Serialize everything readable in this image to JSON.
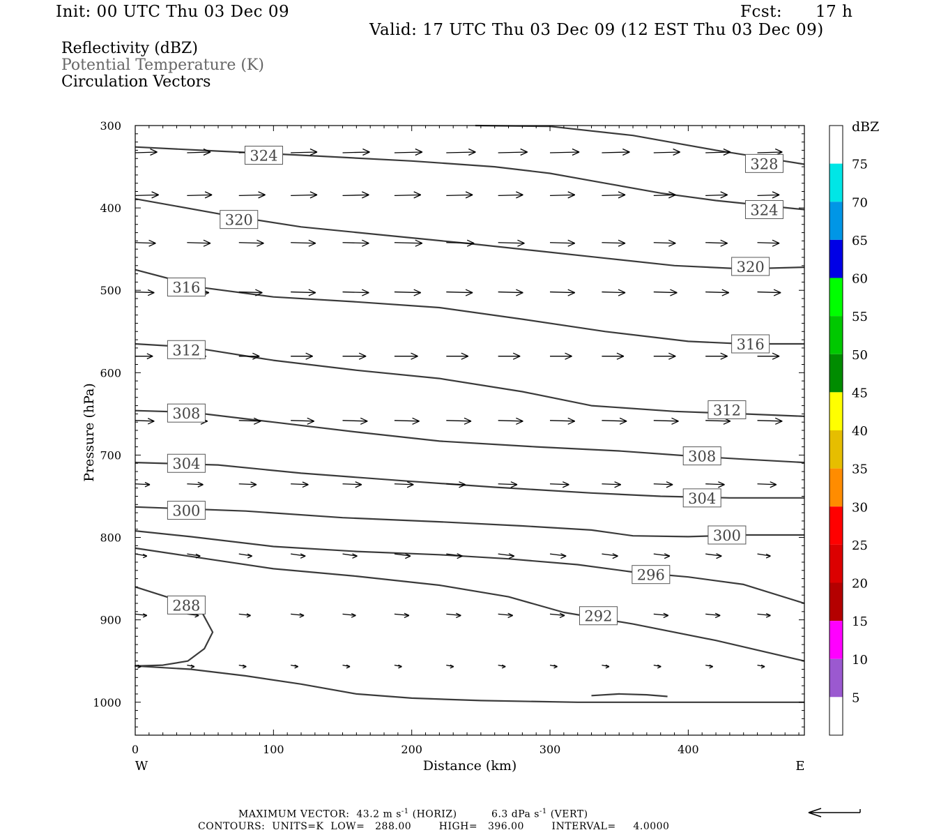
{
  "header": {
    "init": "Init: 00 UTC Thu 03 Dec 09",
    "fcst_label": "Fcst:",
    "fcst_value": "17 h",
    "valid": "Valid: 17 UTC Thu 03 Dec 09 (12 EST Thu 03 Dec 09)"
  },
  "legend": {
    "fields": [
      "Reflectivity (dBZ)",
      "Potential Temperature (K)",
      "Circulation Vectors"
    ],
    "colors": [
      "#000000",
      "#666666",
      "#000000"
    ]
  },
  "footer": {
    "line1_a": "MAXIMUM VECTOR:  43.2 m s",
    "line1_b": " (HORIZ)",
    "line1_c": "6.3 dPa s",
    "line1_d": " (VERT)",
    "exp": "-1",
    "line2": "CONTOURS:  UNITS=K  LOW=   288.00        HIGH=   396.00        INTERVAL=     4.0000"
  },
  "chart_data": {
    "type": "cross-section",
    "xlabel": "Distance (km)",
    "ylabel": "Pressure (hPa)",
    "xlim": [
      0,
      484
    ],
    "ylim": [
      300,
      1040
    ],
    "x_ticks": [
      "0",
      "100",
      "200",
      "300",
      "400"
    ],
    "y_ticks": [
      "300",
      "400",
      "500",
      "600",
      "700",
      "800",
      "900",
      "1000"
    ],
    "x_end_labels": {
      "left": "W",
      "right": "E"
    },
    "contour_color": "#3a3a3a",
    "isentropes": [
      {
        "label": "328",
        "points": [
          [
            246,
            300
          ],
          [
            300,
            301
          ],
          [
            360,
            312
          ],
          [
            420,
            330
          ],
          [
            484,
            347
          ]
        ],
        "labels_at": [
          [
            455,
            346
          ]
        ]
      },
      {
        "label": "324",
        "points": [
          [
            0,
            326
          ],
          [
            60,
            331
          ],
          [
            120,
            336
          ],
          [
            200,
            343
          ],
          [
            260,
            350
          ],
          [
            300,
            358
          ],
          [
            340,
            370
          ],
          [
            380,
            382
          ],
          [
            420,
            391
          ],
          [
            484,
            402
          ]
        ],
        "labels_at": [
          [
            93,
            336
          ],
          [
            455,
            402
          ]
        ]
      },
      {
        "label": "320",
        "points": [
          [
            0,
            389
          ],
          [
            30,
            398
          ],
          [
            70,
            410
          ],
          [
            120,
            423
          ],
          [
            180,
            433
          ],
          [
            240,
            443
          ],
          [
            290,
            452
          ],
          [
            340,
            461
          ],
          [
            390,
            470
          ],
          [
            440,
            474
          ],
          [
            484,
            472
          ]
        ],
        "labels_at": [
          [
            75,
            414
          ],
          [
            445,
            471
          ]
        ]
      },
      {
        "label": "316",
        "points": [
          [
            0,
            475
          ],
          [
            50,
            497
          ],
          [
            100,
            508
          ],
          [
            160,
            514
          ],
          [
            220,
            521
          ],
          [
            280,
            535
          ],
          [
            340,
            550
          ],
          [
            400,
            562
          ],
          [
            440,
            565
          ],
          [
            484,
            565
          ]
        ],
        "labels_at": [
          [
            37,
            496
          ],
          [
            445,
            565
          ]
        ]
      },
      {
        "label": "312",
        "points": [
          [
            0,
            565
          ],
          [
            40,
            569
          ],
          [
            100,
            585
          ],
          [
            160,
            597
          ],
          [
            220,
            607
          ],
          [
            280,
            623
          ],
          [
            330,
            640
          ],
          [
            390,
            647
          ],
          [
            440,
            650
          ],
          [
            484,
            653
          ]
        ],
        "labels_at": [
          [
            37,
            572
          ],
          [
            428,
            645
          ]
        ]
      },
      {
        "label": "308",
        "points": [
          [
            0,
            646
          ],
          [
            40,
            648
          ],
          [
            100,
            660
          ],
          [
            160,
            672
          ],
          [
            220,
            683
          ],
          [
            290,
            690
          ],
          [
            350,
            695
          ],
          [
            400,
            701
          ],
          [
            440,
            705
          ],
          [
            484,
            709
          ]
        ],
        "labels_at": [
          [
            37,
            649
          ],
          [
            410,
            701
          ]
        ]
      },
      {
        "label": "304",
        "points": [
          [
            0,
            709
          ],
          [
            60,
            712
          ],
          [
            120,
            722
          ],
          [
            200,
            732
          ],
          [
            260,
            739
          ],
          [
            330,
            746
          ],
          [
            380,
            750
          ],
          [
            430,
            752
          ],
          [
            484,
            752
          ]
        ],
        "labels_at": [
          [
            37,
            710
          ],
          [
            410,
            752
          ]
        ]
      },
      {
        "label": "300",
        "points": [
          [
            0,
            763
          ],
          [
            80,
            768
          ],
          [
            150,
            776
          ],
          [
            220,
            781
          ],
          [
            280,
            786
          ],
          [
            330,
            791
          ],
          [
            360,
            798
          ],
          [
            400,
            799
          ],
          [
            440,
            797
          ],
          [
            484,
            797
          ]
        ],
        "labels_at": [
          [
            37,
            767
          ],
          [
            428,
            797
          ]
        ]
      },
      {
        "label": "296",
        "points": [
          [
            0,
            792
          ],
          [
            40,
            799
          ],
          [
            100,
            811
          ],
          [
            160,
            817
          ],
          [
            220,
            821
          ],
          [
            270,
            826
          ],
          [
            320,
            833
          ],
          [
            360,
            842
          ],
          [
            400,
            848
          ],
          [
            440,
            857
          ],
          [
            484,
            880
          ]
        ],
        "labels_at": [
          [
            373,
            845
          ]
        ]
      },
      {
        "label": "292",
        "points": [
          [
            0,
            813
          ],
          [
            40,
            823
          ],
          [
            100,
            838
          ],
          [
            160,
            847
          ],
          [
            220,
            858
          ],
          [
            270,
            872
          ],
          [
            310,
            891
          ],
          [
            360,
            905
          ],
          [
            420,
            925
          ],
          [
            484,
            950
          ]
        ],
        "labels_at": [
          [
            335,
            895
          ]
        ]
      },
      {
        "label": "288",
        "points": [
          [
            0,
            860
          ],
          [
            30,
            876
          ],
          [
            48,
            890
          ],
          [
            56,
            915
          ],
          [
            50,
            935
          ],
          [
            38,
            950
          ],
          [
            20,
            955
          ],
          [
            0,
            956
          ],
          [
            40,
            960
          ],
          [
            80,
            968
          ],
          [
            120,
            978
          ],
          [
            160,
            990
          ],
          [
            200,
            995
          ],
          [
            250,
            998
          ],
          [
            320,
            1000
          ],
          [
            400,
            1000
          ],
          [
            484,
            1000
          ]
        ],
        "labels_at": [
          [
            37,
            882
          ]
        ]
      },
      {
        "label": "",
        "points": [
          [
            330,
            992
          ],
          [
            350,
            990
          ],
          [
            370,
            991
          ],
          [
            385,
            993
          ]
        ],
        "labels_at": []
      }
    ],
    "vector_rows": [
      {
        "p": 333,
        "dp": -1,
        "lens": [
          30,
          32,
          34,
          36,
          37,
          38,
          40,
          40,
          40,
          38,
          36,
          34,
          34
        ]
      },
      {
        "p": 385,
        "dp": -1,
        "lens": [
          32,
          34,
          36,
          36,
          36,
          36,
          36,
          34,
          34,
          32,
          30,
          30,
          30
        ]
      },
      {
        "p": 442,
        "dp": 1,
        "lens": [
          28,
          32,
          34,
          34,
          36,
          38,
          38,
          36,
          34,
          32,
          30,
          30,
          30
        ]
      },
      {
        "p": 502,
        "dp": 1,
        "lens": [
          26,
          30,
          32,
          34,
          36,
          36,
          36,
          34,
          34,
          32,
          32,
          32,
          32
        ]
      },
      {
        "p": 580,
        "dp": 0,
        "lens": [
          24,
          26,
          28,
          30,
          32,
          32,
          30,
          30,
          30,
          30,
          30,
          30,
          30
        ]
      },
      {
        "p": 658,
        "dp": 1,
        "lens": [
          26,
          28,
          30,
          32,
          34,
          34,
          34,
          34,
          34,
          34,
          34,
          34,
          34
        ]
      },
      {
        "p": 735,
        "dp": 1,
        "lens": [
          20,
          22,
          24,
          24,
          26,
          26,
          26,
          26,
          26,
          26,
          26,
          26,
          26
        ]
      },
      {
        "p": 820,
        "dp": 3,
        "lens": [
          16,
          18,
          18,
          20,
          20,
          22,
          22,
          22,
          22,
          22,
          22,
          22,
          18
        ]
      },
      {
        "p": 893,
        "dp": 2,
        "lens": [
          16,
          16,
          16,
          18,
          18,
          20,
          20,
          20,
          20,
          20,
          20,
          20,
          18
        ]
      },
      {
        "p": 955,
        "dp": 2,
        "lens": [
          8,
          10,
          10,
          10,
          10,
          10,
          10,
          10,
          10,
          10,
          10,
          10,
          10
        ]
      }
    ],
    "colorbar": {
      "label": "dBZ",
      "levels": [
        "5",
        "10",
        "15",
        "20",
        "25",
        "30",
        "35",
        "40",
        "45",
        "50",
        "55",
        "60",
        "65",
        "70",
        "75"
      ],
      "colors": [
        "#ffffff",
        "#00e6e6",
        "#0096e6",
        "#0000e6",
        "#00ff00",
        "#00c800",
        "#008c00",
        "#ffff00",
        "#e6be00",
        "#ff8c00",
        "#ff0000",
        "#dc0000",
        "#b40000",
        "#ff00ff",
        "#9b59d0",
        "#ffffff"
      ]
    }
  }
}
